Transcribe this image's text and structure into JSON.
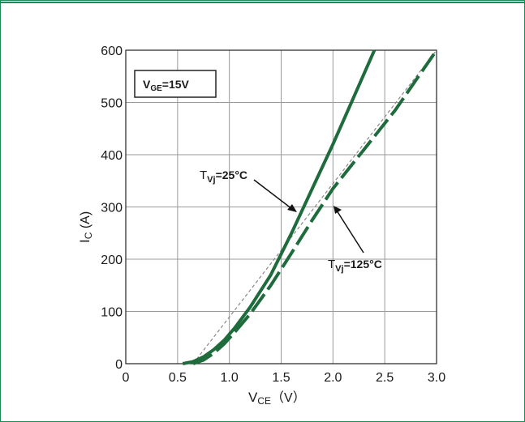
{
  "chart_data": {
    "type": "line",
    "xlabel": {
      "main": "V",
      "sub": "CE",
      "suffix": "（V）"
    },
    "ylabel": {
      "main": "I",
      "sub": "C",
      "suffix": " (A)"
    },
    "xlim": [
      0,
      3.0
    ],
    "ylim": [
      0,
      600
    ],
    "x_ticks": [
      0,
      0.5,
      1.0,
      1.5,
      2.0,
      2.5,
      3.0
    ],
    "x_tick_labels": [
      "0",
      "0.5",
      "1.0",
      "1.5",
      "2.0",
      "2.5",
      "3.0"
    ],
    "y_ticks": [
      0,
      100,
      200,
      300,
      400,
      500,
      600
    ],
    "y_tick_labels": [
      "0",
      "100",
      "200",
      "300",
      "400",
      "500",
      "600"
    ],
    "grid": true,
    "condition_box": {
      "main": "V",
      "sub": "GE",
      "suffix": "=15V"
    },
    "series": [
      {
        "label": {
          "main": "T",
          "sub": "Vj",
          "suffix": "=25°C"
        },
        "style": "solid",
        "color": "#1e6b3c",
        "x": [
          0.55,
          0.65,
          0.75,
          0.85,
          0.95,
          1.05,
          1.2,
          1.4,
          1.6,
          1.8,
          2.0,
          2.2,
          2.4
        ],
        "y": [
          0,
          4,
          13,
          27,
          45,
          68,
          108,
          170,
          250,
          335,
          420,
          510,
          600
        ]
      },
      {
        "label": {
          "main": "T",
          "sub": "Vj",
          "suffix": "=125°C"
        },
        "style": "dashed",
        "color": "#1e6b3c",
        "x": [
          0.65,
          0.75,
          0.85,
          0.95,
          1.05,
          1.2,
          1.4,
          1.6,
          1.8,
          2.0,
          2.3,
          2.6,
          3.0
        ],
        "y": [
          0,
          7,
          20,
          38,
          60,
          95,
          150,
          212,
          275,
          335,
          410,
          485,
          600
        ]
      }
    ],
    "reference_line": {
      "style": "thin-dashed",
      "color": "#888888",
      "x": [
        0.65,
        3.0
      ],
      "y": [
        0,
        600
      ]
    }
  }
}
